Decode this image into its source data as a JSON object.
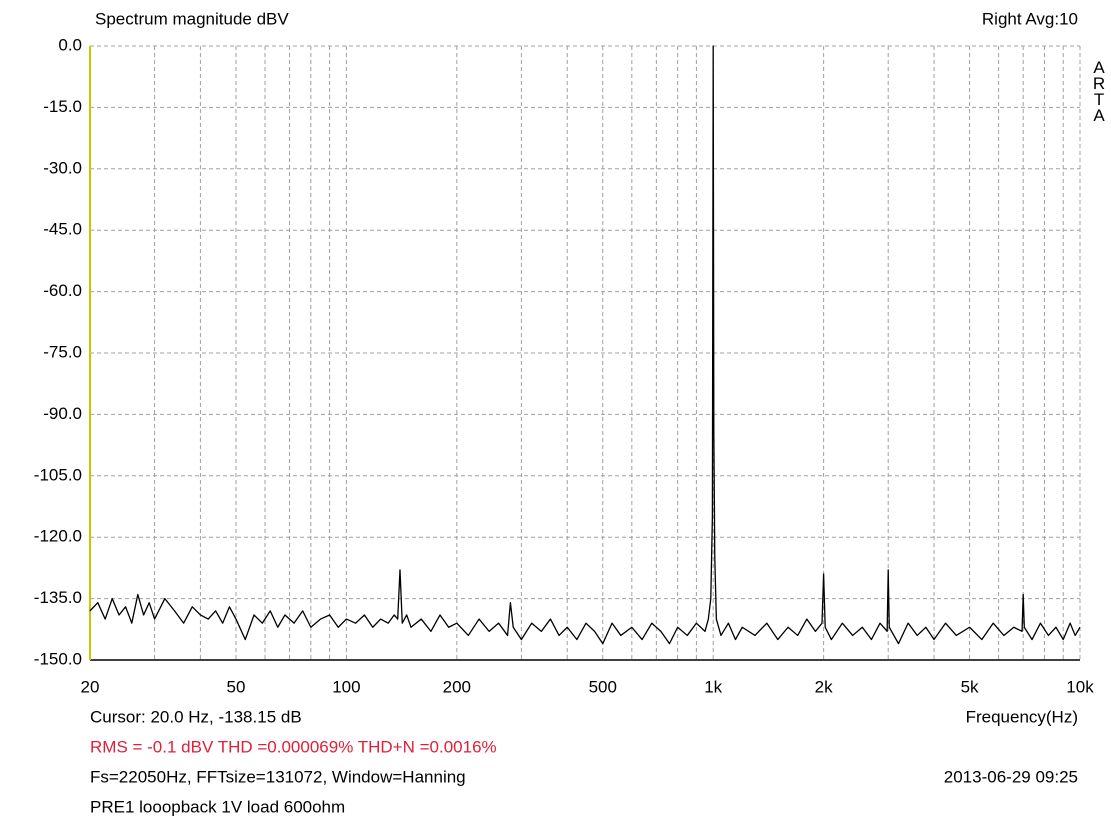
{
  "chart_data": {
    "type": "line",
    "title": "Spectrum magnitude dBV",
    "subtitle": "Right  Avg:10",
    "brand": "ARTA",
    "x_label": "Frequency(Hz)",
    "annotations": {
      "cursor": "Cursor:   20.0 Hz, -138.15 dB",
      "measurements": "RMS =  -0.1 dBV   THD =0.000069%   THD+N =0.0016%",
      "settings": "Fs=22050Hz, FFTsize=131072, Window=Hanning",
      "date": "2013-06-29  09:25",
      "description": "PRE1 looopback 1V load 600ohm"
    },
    "xscale": "log",
    "xlim": [
      20,
      10000
    ],
    "xticks": [
      20,
      50,
      100,
      200,
      500,
      {
        "value": 1000,
        "label": "1k"
      },
      {
        "value": 2000,
        "label": "2k"
      },
      {
        "value": 5000,
        "label": "5k"
      },
      {
        "value": 10000,
        "label": "10k"
      }
    ],
    "xminor": [
      30,
      40,
      60,
      70,
      80,
      90,
      300,
      400,
      600,
      700,
      800,
      900,
      3000,
      4000,
      6000,
      7000,
      8000,
      9000
    ],
    "ylim": [
      -150,
      0
    ],
    "yticks": [
      {
        "value": 0,
        "label": "0.0"
      },
      {
        "value": -15,
        "label": "-15.0"
      },
      {
        "value": -30,
        "label": "-30.0"
      },
      {
        "value": -45,
        "label": "-45.0"
      },
      {
        "value": -60,
        "label": "-60.0"
      },
      {
        "value": -75,
        "label": "-75.0"
      },
      {
        "value": -90,
        "label": "-90.0"
      },
      {
        "value": -105,
        "label": "-105.0"
      },
      {
        "value": -120,
        "label": "-120.0"
      },
      {
        "value": -135,
        "label": "-135.0"
      },
      {
        "value": -150,
        "label": "-150.0"
      }
    ],
    "grid": true,
    "x": [
      20,
      21,
      22,
      23,
      24,
      25,
      26,
      27,
      28,
      29,
      30,
      32,
      34,
      36,
      38,
      40,
      42,
      44,
      46,
      48,
      50,
      53,
      56,
      59,
      62,
      65,
      68,
      72,
      76,
      80,
      85,
      90,
      95,
      100,
      106,
      112,
      118,
      124,
      130,
      135,
      138,
      140,
      142,
      146,
      150,
      160,
      170,
      180,
      190,
      200,
      215,
      230,
      245,
      260,
      275,
      280,
      285,
      300,
      320,
      340,
      360,
      380,
      400,
      425,
      450,
      475,
      500,
      530,
      560,
      600,
      640,
      680,
      720,
      760,
      800,
      850,
      900,
      950,
      970,
      985,
      995,
      1000,
      1004,
      1010,
      1020,
      1050,
      1100,
      1150,
      1200,
      1300,
      1400,
      1500,
      1600,
      1700,
      1800,
      1900,
      1980,
      2000,
      2020,
      2100,
      2250,
      2400,
      2550,
      2700,
      2850,
      2980,
      3000,
      3020,
      3200,
      3400,
      3600,
      3800,
      4000,
      4300,
      4600,
      5000,
      5400,
      5800,
      6200,
      6600,
      6950,
      7000,
      7050,
      7400,
      7800,
      8200,
      8600,
      9000,
      9400,
      9700,
      10000
    ],
    "series": [
      {
        "color": "#000000",
        "values": [
          -138,
          -136,
          -140,
          -135,
          -139,
          -137,
          -141,
          -134,
          -139,
          -136,
          -140,
          -135,
          -138,
          -141,
          -137,
          -139,
          -140,
          -138,
          -141,
          -137,
          -140,
          -145,
          -139,
          -141,
          -138,
          -142,
          -139,
          -141,
          -138,
          -142,
          -140,
          -139,
          -142,
          -140,
          -141,
          -139,
          -142,
          -140,
          -141,
          -139,
          -140,
          -128,
          -141,
          -139,
          -142,
          -140,
          -143,
          -139,
          -142,
          -141,
          -144,
          -140,
          -143,
          -141,
          -144,
          -136,
          -142,
          -145,
          -141,
          -143,
          -140,
          -144,
          -142,
          -145,
          -141,
          -143,
          -146,
          -141,
          -144,
          -142,
          -145,
          -141,
          -143,
          -146,
          -142,
          -144,
          -141,
          -143,
          -140,
          -135,
          -115,
          0,
          -94,
          -125,
          -140,
          -144,
          -141,
          -145,
          -142,
          -144,
          -141,
          -145,
          -142,
          -144,
          -140,
          -143,
          -141,
          -129,
          -142,
          -145,
          -141,
          -144,
          -142,
          -145,
          -141,
          -143,
          -128,
          -142,
          -146,
          -141,
          -144,
          -142,
          -145,
          -141,
          -144,
          -142,
          -145,
          -141,
          -144,
          -142,
          -143,
          -134,
          -142,
          -145,
          -141,
          -144,
          -142,
          -145,
          -141,
          -144,
          -142
        ]
      }
    ]
  }
}
